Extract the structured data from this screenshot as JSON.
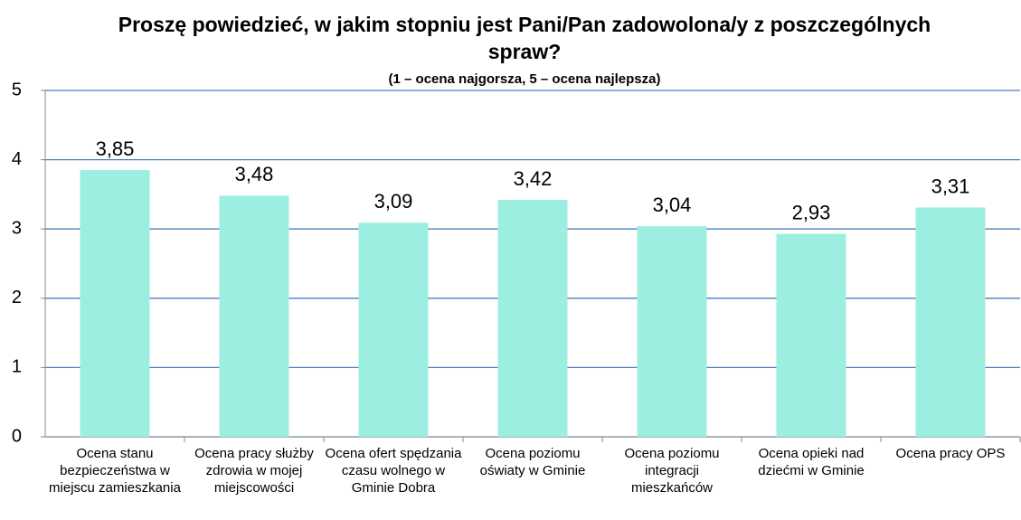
{
  "chart_data": {
    "type": "bar",
    "title": "Proszę powiedzieć, w jakim stopniu jest Pani/Pan zadowolona/y z poszczególnych spraw?",
    "subtitle": "(1 – ocena najgorsza, 5 – ocena najlepsza)",
    "categories": [
      "Ocena stanu bezpieczeństwa w miejscu zamieszkania",
      "Ocena pracy służby zdrowia w mojej miejscowości",
      "Ocena ofert spędzania czasu wolnego w Gminie Dobra",
      "Ocena poziomu oświaty w Gminie",
      "Ocena poziomu integracji mieszkańców",
      "Ocena opieki nad dziećmi w Gminie",
      "Ocena pracy OPS"
    ],
    "values": [
      3.85,
      3.48,
      3.09,
      3.42,
      3.04,
      2.93,
      3.31
    ],
    "value_labels": [
      "3,85",
      "3,48",
      "3,09",
      "3,42",
      "3,04",
      "2,93",
      "3,31"
    ],
    "color": "#9cefe0",
    "ylim": [
      0,
      5
    ],
    "yticks": [
      0,
      1,
      2,
      3,
      4,
      5
    ],
    "grid": true
  }
}
